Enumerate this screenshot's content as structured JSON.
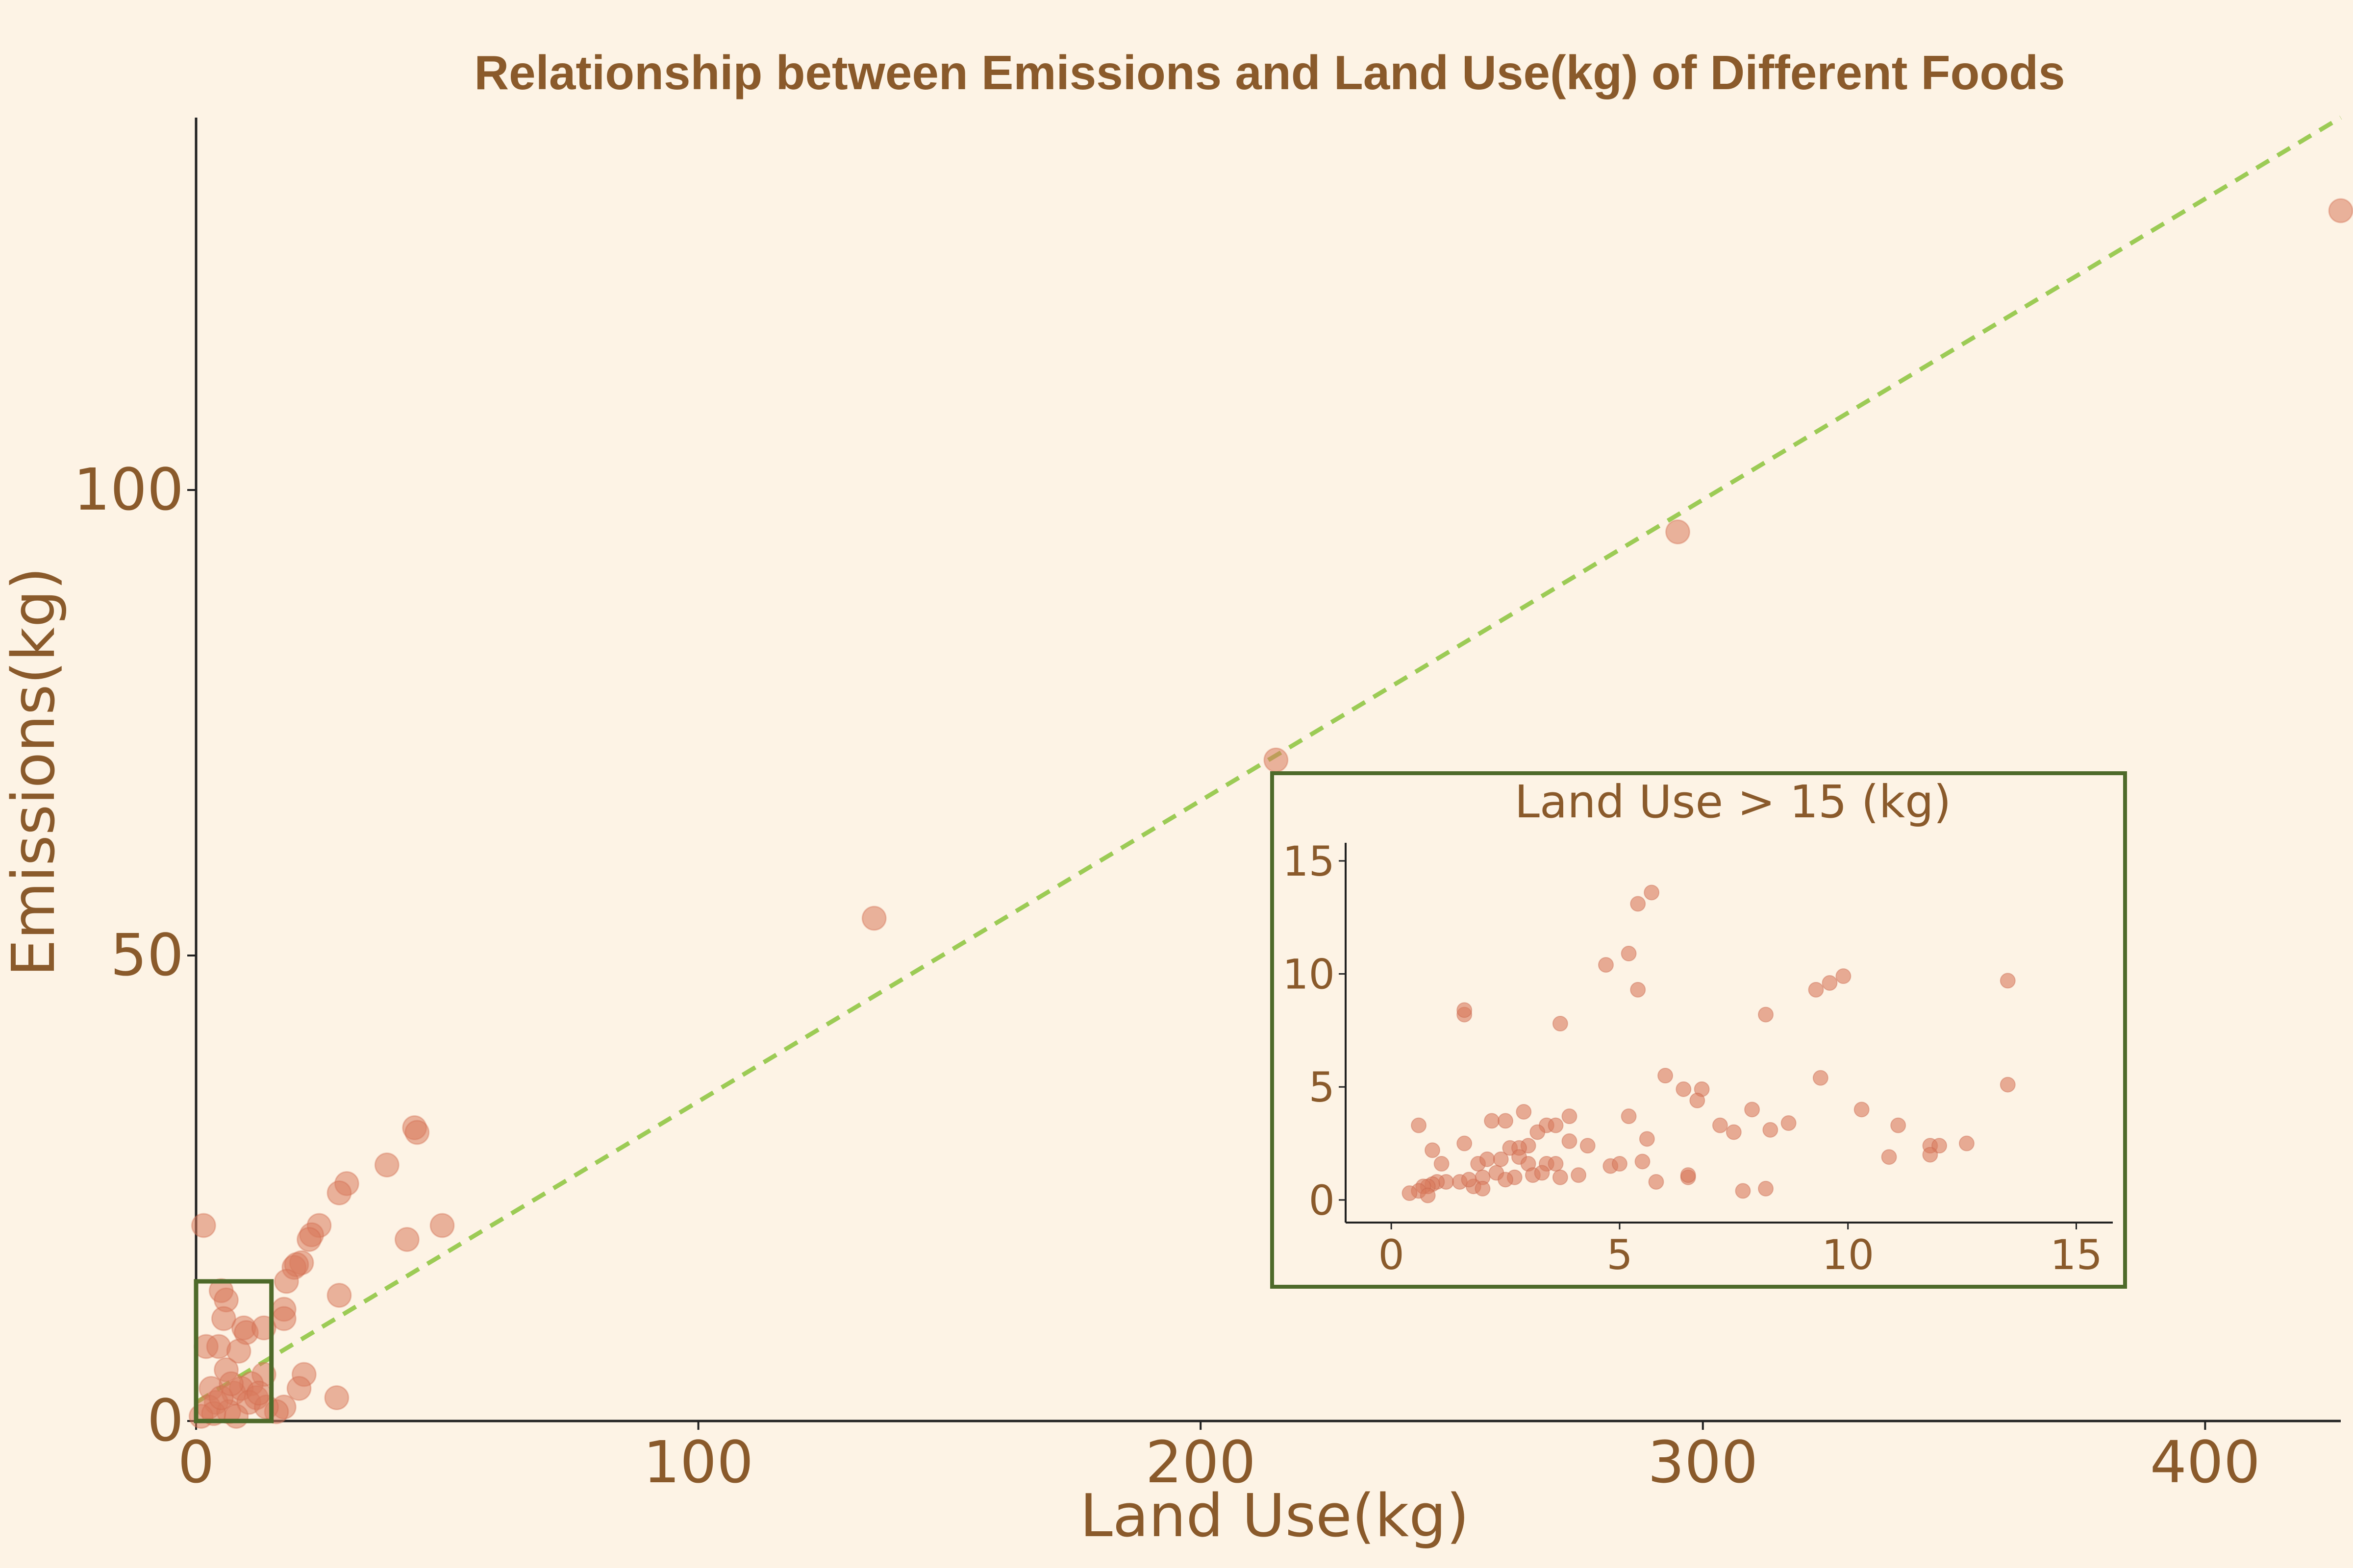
{
  "chart_data": {
    "type": "scatter",
    "title": "Relationship between Emissions and Land Use(kg) of Different Foods",
    "xlabel": "Land Use(kg)",
    "ylabel": "Emissions(kg)",
    "xlim": [
      0,
      427
    ],
    "ylim": [
      0,
      140
    ],
    "x_ticks": [
      "0",
      "100",
      "200",
      "300",
      "400"
    ],
    "y_ticks": [
      "0",
      "50",
      "100"
    ],
    "grid": false,
    "colors": {
      "points": "#d87a5c",
      "trend": "#9ccb55",
      "highlight": "#4e6a2a",
      "text": "#8a5a2b",
      "background": "#fdf3e5"
    },
    "highlight_box": {
      "x": [
        0,
        15
      ],
      "y": [
        0,
        15
      ]
    },
    "trendline": {
      "style": "dashed",
      "x": [
        0,
        427
      ],
      "y": [
        2.0,
        140.0
      ]
    },
    "points": [
      {
        "x": 427,
        "y": 130
      },
      {
        "x": 295,
        "y": 95.5
      },
      {
        "x": 215,
        "y": 71
      },
      {
        "x": 135,
        "y": 54
      },
      {
        "x": 43.5,
        "y": 31.5
      },
      {
        "x": 44,
        "y": 31
      },
      {
        "x": 38,
        "y": 27.5
      },
      {
        "x": 30,
        "y": 25.5
      },
      {
        "x": 28.5,
        "y": 24.5
      },
      {
        "x": 24.5,
        "y": 21
      },
      {
        "x": 23,
        "y": 20
      },
      {
        "x": 22.5,
        "y": 19.5
      },
      {
        "x": 21,
        "y": 17
      },
      {
        "x": 19.5,
        "y": 16.5
      },
      {
        "x": 20,
        "y": 16.8
      },
      {
        "x": 18,
        "y": 15
      },
      {
        "x": 17.5,
        "y": 12
      },
      {
        "x": 17.5,
        "y": 11
      },
      {
        "x": 42,
        "y": 19.5
      },
      {
        "x": 49,
        "y": 21
      },
      {
        "x": 28.5,
        "y": 13.5
      },
      {
        "x": 21.5,
        "y": 5
      },
      {
        "x": 20.5,
        "y": 3.5
      },
      {
        "x": 17.5,
        "y": 1.5
      },
      {
        "x": 16,
        "y": 1
      },
      {
        "x": 28,
        "y": 2.5
      },
      {
        "x": 1.5,
        "y": 21
      },
      {
        "x": 2,
        "y": 8
      },
      {
        "x": 5,
        "y": 14
      },
      {
        "x": 6,
        "y": 13
      },
      {
        "x": 5.5,
        "y": 11
      },
      {
        "x": 9.5,
        "y": 10
      },
      {
        "x": 10,
        "y": 9.5
      },
      {
        "x": 13.5,
        "y": 10
      },
      {
        "x": 4.5,
        "y": 8
      },
      {
        "x": 8.5,
        "y": 7.5
      },
      {
        "x": 13.5,
        "y": 5
      },
      {
        "x": 6,
        "y": 5.5
      },
      {
        "x": 11,
        "y": 4
      },
      {
        "x": 3,
        "y": 3.5
      },
      {
        "x": 7.5,
        "y": 3
      },
      {
        "x": 9,
        "y": 3.5
      },
      {
        "x": 12,
        "y": 2.5
      },
      {
        "x": 10.5,
        "y": 2
      },
      {
        "x": 4,
        "y": 2
      },
      {
        "x": 2.5,
        "y": 1.5
      },
      {
        "x": 1,
        "y": 0.5
      },
      {
        "x": 6.5,
        "y": 1
      },
      {
        "x": 8,
        "y": 0.5
      },
      {
        "x": 14,
        "y": 1.5
      },
      {
        "x": 3.5,
        "y": 0.8
      },
      {
        "x": 5,
        "y": 2.5
      },
      {
        "x": 12.5,
        "y": 3
      },
      {
        "x": 7,
        "y": 4
      }
    ],
    "inset": {
      "title": "Land Use > 15 (kg)",
      "xlim": [
        -1,
        15.8
      ],
      "ylim": [
        -1,
        15.8
      ],
      "x_ticks": [
        "0",
        "5",
        "10",
        "15"
      ],
      "y_ticks": [
        "0",
        "5",
        "10",
        "15"
      ],
      "points": [
        {
          "x": 5.7,
          "y": 13.6
        },
        {
          "x": 5.4,
          "y": 13.1
        },
        {
          "x": 5.2,
          "y": 10.9
        },
        {
          "x": 4.7,
          "y": 10.4
        },
        {
          "x": 5.4,
          "y": 9.3
        },
        {
          "x": 9.9,
          "y": 9.9
        },
        {
          "x": 9.6,
          "y": 9.6
        },
        {
          "x": 9.3,
          "y": 9.3
        },
        {
          "x": 13.5,
          "y": 9.7
        },
        {
          "x": 8.2,
          "y": 8.2
        },
        {
          "x": 1.6,
          "y": 8.2
        },
        {
          "x": 1.6,
          "y": 8.4
        },
        {
          "x": 3.7,
          "y": 7.8
        },
        {
          "x": 6.0,
          "y": 5.5
        },
        {
          "x": 9.4,
          "y": 5.4
        },
        {
          "x": 13.5,
          "y": 5.1
        },
        {
          "x": 6.4,
          "y": 4.9
        },
        {
          "x": 6.8,
          "y": 4.9
        },
        {
          "x": 6.7,
          "y": 4.4
        },
        {
          "x": 10.3,
          "y": 4.0
        },
        {
          "x": 7.9,
          "y": 4.0
        },
        {
          "x": 5.2,
          "y": 3.7
        },
        {
          "x": 3.9,
          "y": 3.7
        },
        {
          "x": 2.9,
          "y": 3.9
        },
        {
          "x": 0.6,
          "y": 3.3
        },
        {
          "x": 2.2,
          "y": 3.5
        },
        {
          "x": 2.5,
          "y": 3.5
        },
        {
          "x": 3.4,
          "y": 3.3
        },
        {
          "x": 3.6,
          "y": 3.3
        },
        {
          "x": 7.2,
          "y": 3.3
        },
        {
          "x": 7.5,
          "y": 3.0
        },
        {
          "x": 8.3,
          "y": 3.1
        },
        {
          "x": 8.7,
          "y": 3.4
        },
        {
          "x": 11.1,
          "y": 3.3
        },
        {
          "x": 3.2,
          "y": 3.0
        },
        {
          "x": 5.6,
          "y": 2.7
        },
        {
          "x": 3.9,
          "y": 2.6
        },
        {
          "x": 4.3,
          "y": 2.4
        },
        {
          "x": 3.0,
          "y": 2.4
        },
        {
          "x": 2.6,
          "y": 2.3
        },
        {
          "x": 2.8,
          "y": 2.3
        },
        {
          "x": 1.6,
          "y": 2.5
        },
        {
          "x": 0.9,
          "y": 2.2
        },
        {
          "x": 11.8,
          "y": 2.4
        },
        {
          "x": 12.0,
          "y": 2.4
        },
        {
          "x": 12.6,
          "y": 2.5
        },
        {
          "x": 11.8,
          "y": 2.0
        },
        {
          "x": 10.9,
          "y": 1.9
        },
        {
          "x": 1.1,
          "y": 1.6
        },
        {
          "x": 1.9,
          "y": 1.6
        },
        {
          "x": 2.1,
          "y": 1.8
        },
        {
          "x": 2.4,
          "y": 1.8
        },
        {
          "x": 2.8,
          "y": 1.9
        },
        {
          "x": 3.0,
          "y": 1.6
        },
        {
          "x": 3.4,
          "y": 1.6
        },
        {
          "x": 3.6,
          "y": 1.6
        },
        {
          "x": 4.8,
          "y": 1.5
        },
        {
          "x": 5.0,
          "y": 1.6
        },
        {
          "x": 5.5,
          "y": 1.7
        },
        {
          "x": 6.5,
          "y": 1.0
        },
        {
          "x": 6.5,
          "y": 1.1
        },
        {
          "x": 5.8,
          "y": 0.8
        },
        {
          "x": 3.1,
          "y": 1.1
        },
        {
          "x": 3.3,
          "y": 1.2
        },
        {
          "x": 2.0,
          "y": 1.0
        },
        {
          "x": 2.3,
          "y": 1.2
        },
        {
          "x": 2.7,
          "y": 1.0
        },
        {
          "x": 1.5,
          "y": 0.8
        },
        {
          "x": 1.2,
          "y": 0.8
        },
        {
          "x": 1.0,
          "y": 0.8
        },
        {
          "x": 0.9,
          "y": 0.7
        },
        {
          "x": 0.8,
          "y": 0.6
        },
        {
          "x": 0.7,
          "y": 0.6
        },
        {
          "x": 0.6,
          "y": 0.4
        },
        {
          "x": 0.4,
          "y": 0.3
        },
        {
          "x": 0.8,
          "y": 0.2
        },
        {
          "x": 1.8,
          "y": 0.6
        },
        {
          "x": 2.0,
          "y": 0.5
        },
        {
          "x": 1.7,
          "y": 0.9
        },
        {
          "x": 2.5,
          "y": 0.9
        },
        {
          "x": 3.7,
          "y": 1.0
        },
        {
          "x": 4.1,
          "y": 1.1
        },
        {
          "x": 7.7,
          "y": 0.4
        },
        {
          "x": 8.2,
          "y": 0.5
        }
      ]
    }
  }
}
